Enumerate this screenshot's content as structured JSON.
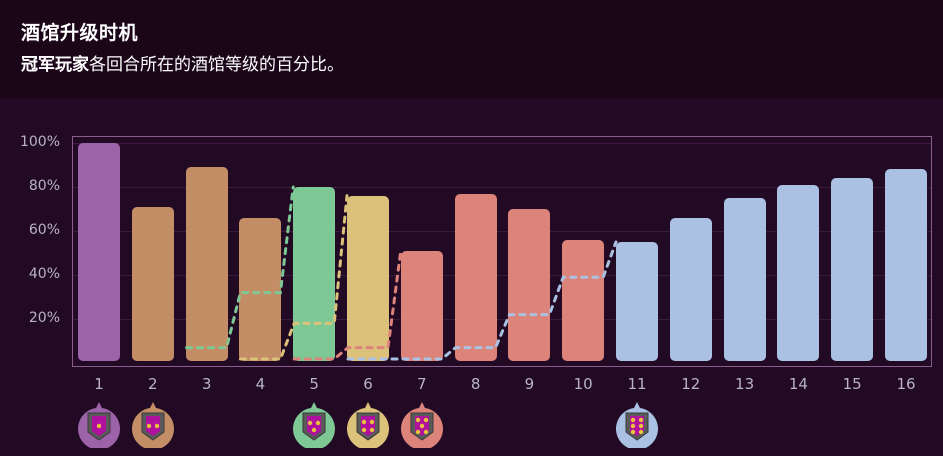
{
  "header": {
    "title": "酒馆升级时机",
    "subtitle_bold": "冠军玩家",
    "subtitle_rest": "各回合所在的酒馆等级的百分比。"
  },
  "colors": {
    "tier1": "#9d63a8",
    "tier2": "#c38d66",
    "tier3": "#7ec896",
    "tier4": "#dcc17a",
    "tier5": "#dc837a",
    "tier6": "#abc1e3"
  },
  "chart_data": {
    "type": "bar",
    "title": "酒馆升级时机",
    "subtitle": "冠军玩家各回合所在的酒馆等级的百分比。",
    "xlabel": "",
    "ylabel": "",
    "ylim": [
      0,
      100
    ],
    "yticks": [
      "20%",
      "40%",
      "60%",
      "80%",
      "100%"
    ],
    "grid": true,
    "categories": [
      "1",
      "2",
      "3",
      "4",
      "5",
      "6",
      "7",
      "8",
      "9",
      "10",
      "11",
      "12",
      "13",
      "14",
      "15",
      "16"
    ],
    "values": [
      100,
      71,
      89,
      66,
      80,
      76,
      51,
      77,
      70,
      56,
      55,
      66,
      75,
      81,
      84,
      88
    ],
    "bar_tier": [
      1,
      2,
      2,
      2,
      3,
      4,
      5,
      5,
      5,
      5,
      6,
      6,
      6,
      6,
      6,
      6
    ],
    "series": [
      {
        "name": "tier3_upgrade_progress",
        "color": "#7ec896",
        "style": "dashed",
        "rounds": [
          3,
          4,
          5
        ],
        "values": [
          7,
          32,
          80
        ]
      },
      {
        "name": "tier4_upgrade_progress",
        "color": "#dcc17a",
        "style": "dashed",
        "rounds": [
          4,
          5,
          6
        ],
        "values": [
          1,
          18,
          76
        ]
      },
      {
        "name": "tier5_upgrade_progress",
        "color": "#dc837a",
        "style": "dashed",
        "rounds": [
          5,
          6,
          7
        ],
        "values": [
          1,
          7,
          51
        ]
      },
      {
        "name": "tier6_upgrade_progress",
        "color": "#abc1e3",
        "style": "dashed",
        "rounds": [
          6,
          7,
          8,
          9,
          10,
          11
        ],
        "values": [
          1,
          1,
          7,
          22,
          39,
          55
        ]
      }
    ],
    "badges": [
      {
        "round": 1,
        "tier": 1,
        "stars": 1
      },
      {
        "round": 2,
        "tier": 2,
        "stars": 2
      },
      {
        "round": 5,
        "tier": 3,
        "stars": 3
      },
      {
        "round": 6,
        "tier": 4,
        "stars": 4
      },
      {
        "round": 7,
        "tier": 5,
        "stars": 5
      },
      {
        "round": 11,
        "tier": 6,
        "stars": 6
      }
    ]
  }
}
